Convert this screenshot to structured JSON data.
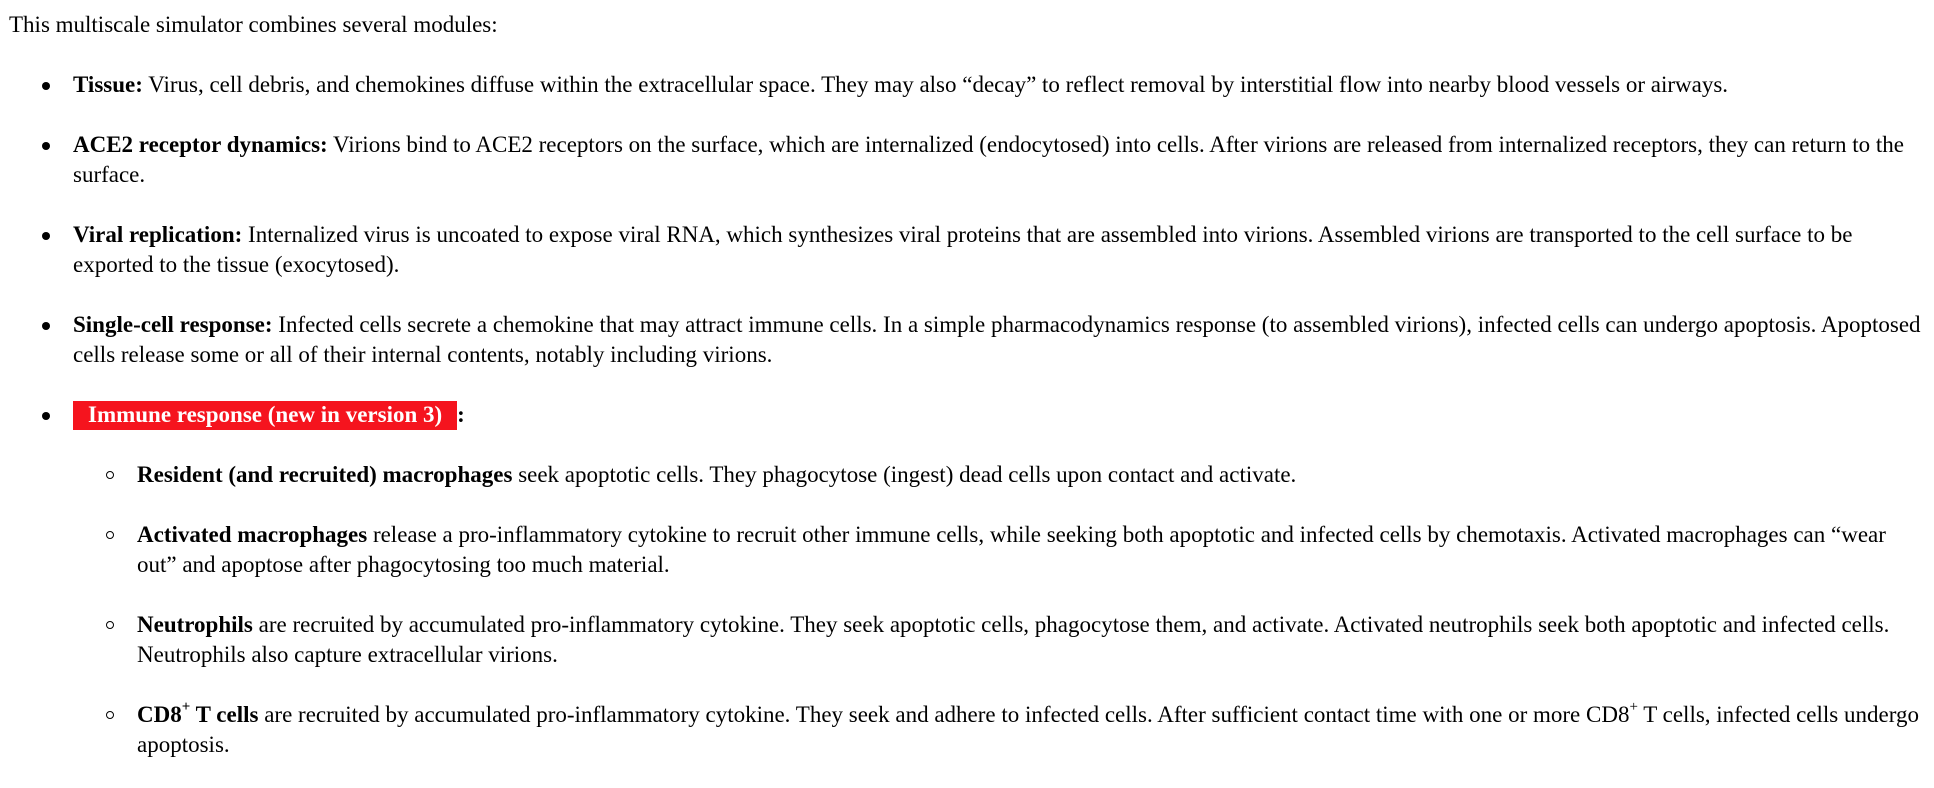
{
  "intro": "This multiscale simulator combines several modules:",
  "modules": [
    {
      "title": "Tissue:",
      "text": " Virus, cell debris, and chemokines diffuse within the extracellular space. They may also “decay” to reflect removal by interstitial flow into nearby blood vessels or airways."
    },
    {
      "title": "ACE2 receptor dynamics:",
      "text": " Virions bind to ACE2 receptors on the surface, which are internalized (endocytosed) into cells. After virions are released from internalized receptors, they can return to the surface."
    },
    {
      "title": "Viral replication:",
      "text": " Internalized virus is uncoated to expose viral RNA, which synthesizes viral proteins that are assembled into virions. Assembled virions are transported to the cell surface to be exported to the tissue (exocytosed)."
    },
    {
      "title": "Single-cell response:",
      "text": " Infected cells secrete a chemokine that may attract immune cells. In a simple pharmacodynamics response (to assembled virions), infected cells can undergo apoptosis. Apoptosed cells release some or all of their internal contents, notably including virions."
    }
  ],
  "immune": {
    "title": "Immune response (new in version 3)",
    "colon": ":",
    "highlight_color": "#f5141e",
    "items": [
      {
        "title": "Resident (and recruited) macrophages",
        "text": " seek apoptotic cells. They phagocytose (ingest) dead cells upon contact and activate."
      },
      {
        "title": "Activated macrophages",
        "text": " release a pro-inflammatory cytokine to recruit other immune cells, while seeking both apoptotic and infected cells by chemotaxis. Activated macrophages can “wear out” and apoptose after phagocytosing too much material."
      },
      {
        "title": "Neutrophils",
        "text": " are recruited by accumulated pro-inflammatory cytokine. They seek apoptotic cells, phagocytose them, and activate. Activated neutrophils seek both apoptotic and infected cells. Neutrophils also capture extracellular virions."
      }
    ],
    "cd8": {
      "title_prefix": "CD8",
      "title_sup": "+",
      "title_suffix": " T cells",
      "text_before": " are recruited by accumulated pro-inflammatory cytokine. They seek and adhere to infected cells. After sufficient contact time with one or more CD8",
      "text_sup": "+",
      "text_after": " T cells, infected cells undergo apoptosis."
    }
  }
}
